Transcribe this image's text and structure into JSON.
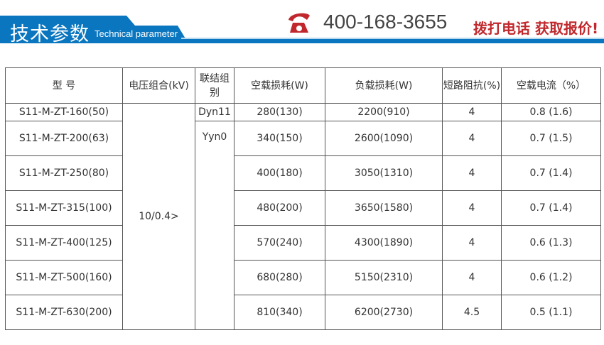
{
  "banner": {
    "title_cn": "技术参数",
    "title_en": "Technical parameter",
    "phone": "400-168-3655",
    "cta": "拨打电话  获取报价!",
    "accent": "#0a76bf",
    "cta_color": "#c0282d"
  },
  "table": {
    "headers": [
      "型 号",
      "电压组合(kV)",
      "联结组别",
      "空载损耗(W)",
      "负载损耗(W)",
      "短路阻抗(%)",
      "空载电流（%）"
    ],
    "voltage": "10/0.4>",
    "connection": [
      "Dyn11",
      "Yyn0"
    ],
    "rows": [
      [
        "S11-M-ZT-160(50)",
        "280(130)",
        "2200(910)",
        "4",
        "0.8 (1.6)"
      ],
      [
        "S11-M-ZT-200(63)",
        "340(150)",
        "2600(1090)",
        "4",
        "0.7 (1.5)"
      ],
      [
        "S11-M-ZT-250(80)",
        "400(180)",
        "3050(1310)",
        "4",
        "0.7 (1.4)"
      ],
      [
        "S11-M-ZT-315(100)",
        "480(200)",
        "3650(1580)",
        "4",
        "0.7 (1.4)"
      ],
      [
        "S11-M-ZT-400(125)",
        "570(240)",
        "4300(1890)",
        "4",
        "0.6 (1.3)"
      ],
      [
        "S11-M-ZT-500(160)",
        "680(280)",
        "5150(2310)",
        "4",
        "0.6 (1.2)"
      ],
      [
        "S11-M-ZT-630(200)",
        "810(340)",
        "6200(2730)",
        "4.5",
        "0.5 (1.1)"
      ]
    ]
  }
}
